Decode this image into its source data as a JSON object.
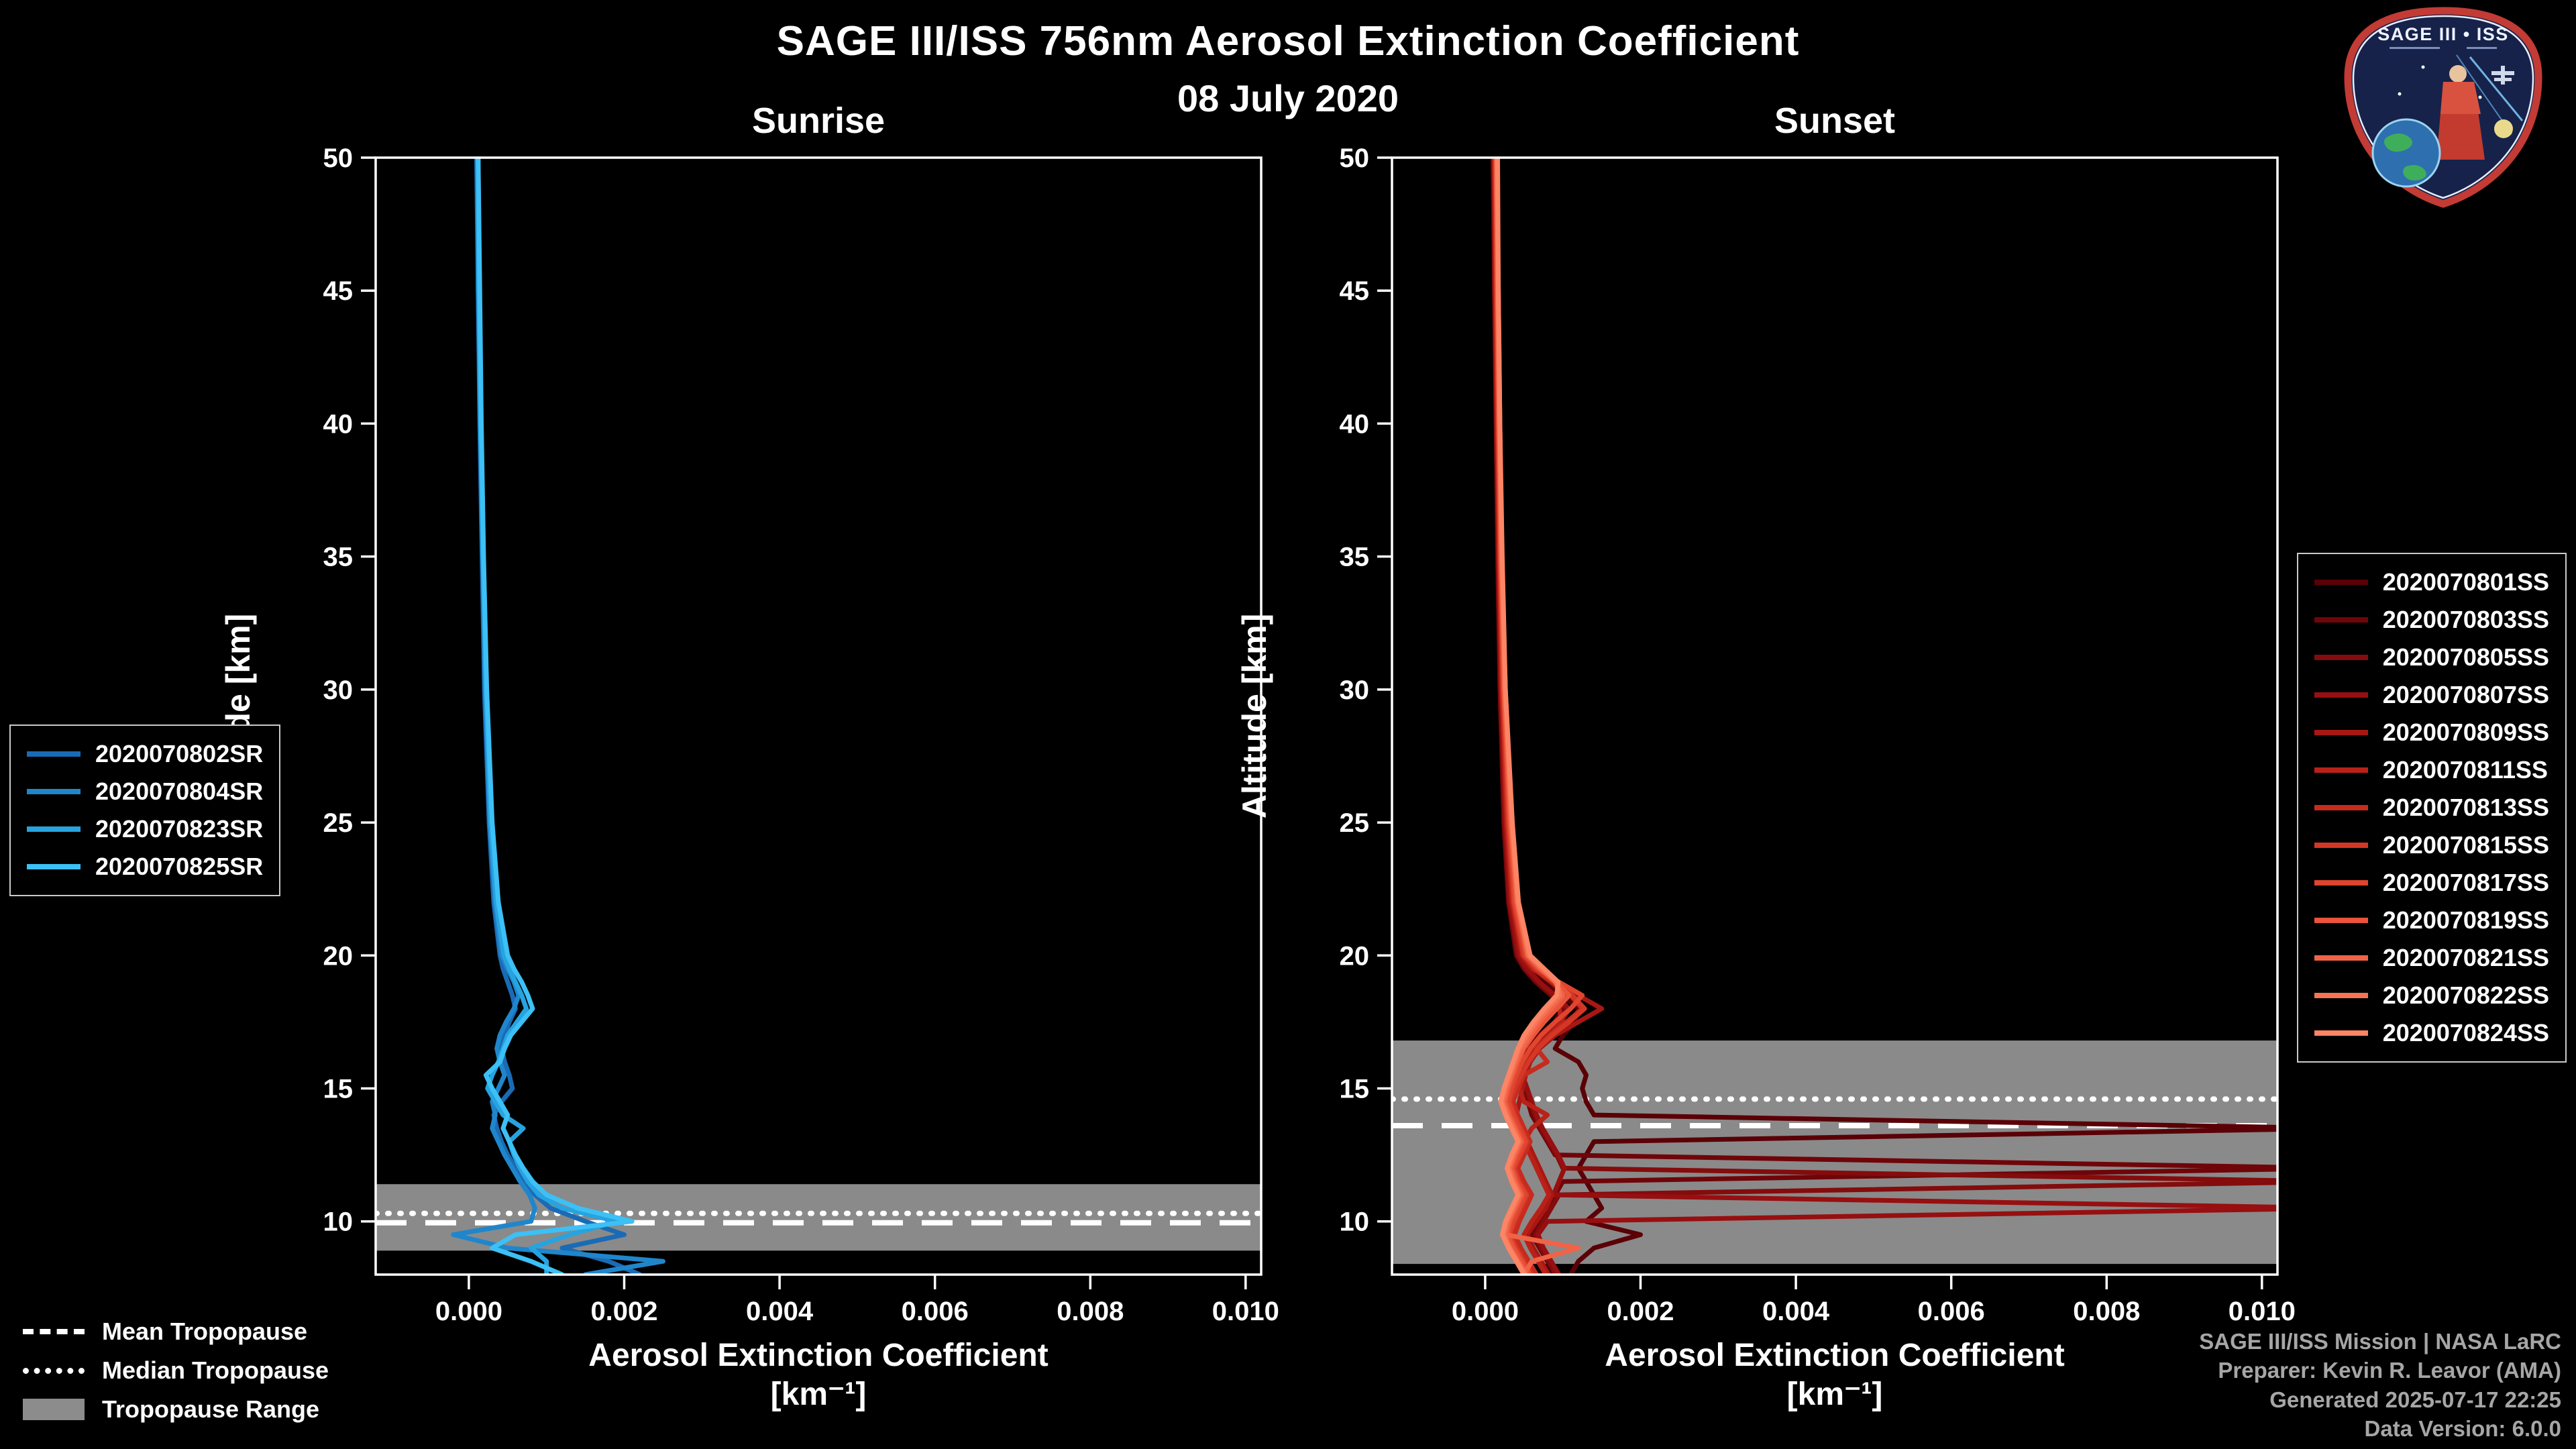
{
  "title": "SAGE III/ISS 756nm Aerosol Extinction Coefficient",
  "date": "08 July 2020",
  "logo": {
    "title": "SAGE III • ISS"
  },
  "tropopause_legend": {
    "mean": "Mean Tropopause",
    "median": "Median Tropopause",
    "range": "Tropopause Range"
  },
  "credits": {
    "line1": "SAGE III/ISS Mission | NASA LaRC",
    "line2": "Preparer: Kevin R. Leavor (AMA)",
    "line3": "Generated 2025-07-17 22:25",
    "line4": "Data Version: 6.0.0"
  },
  "chart_data": [
    {
      "type": "line",
      "title": "Sunrise",
      "xlabel": "Aerosol Extinction Coefficient",
      "xlabel_units": "[km⁻¹]",
      "ylabel": "Altitude [km]",
      "xlim": [
        -0.0012,
        0.0102
      ],
      "ylim": [
        8,
        50
      ],
      "xticks": [
        0.0,
        0.002,
        0.004,
        0.006,
        0.008,
        0.01
      ],
      "xtick_labels": [
        "0.000",
        "0.002",
        "0.004",
        "0.006",
        "0.008",
        "0.010"
      ],
      "yticks": [
        10,
        15,
        20,
        25,
        30,
        35,
        40,
        45,
        50
      ],
      "grid": false,
      "band_color": "#8a8a8a",
      "tropopause": {
        "mean": 9.95,
        "median": 10.3,
        "range": [
          8.9,
          11.4
        ]
      },
      "altitudes": [
        50,
        45,
        40,
        35,
        30,
        25,
        22,
        20,
        19.5,
        19,
        18.5,
        18,
        17.5,
        17,
        16.5,
        16,
        15.5,
        15,
        14.5,
        14,
        13.5,
        13,
        12.5,
        12,
        11.5,
        11,
        10.5,
        10,
        9.5,
        9,
        8.5,
        8
      ],
      "series": [
        {
          "name": "2020070802SR",
          "color": "#1a6bb5",
          "values": [
            0.0001,
            0.00012,
            0.00014,
            0.00017,
            0.0002,
            0.00026,
            0.00032,
            0.0004,
            0.00044,
            0.0005,
            0.00056,
            0.0006,
            0.00052,
            0.00046,
            0.00042,
            0.00046,
            0.00052,
            0.00056,
            0.00042,
            0.00032,
            0.00036,
            0.00042,
            0.0005,
            0.0006,
            0.00072,
            0.00085,
            0.00105,
            0.0015,
            0.002,
            0.0012,
            0.0018,
            0.0022
          ]
        },
        {
          "name": "2020070804SR",
          "color": "#1f86cc",
          "values": [
            0.00011,
            0.00012,
            0.00015,
            0.00018,
            0.00021,
            0.00027,
            0.00034,
            0.00042,
            0.0005,
            0.00058,
            0.00064,
            0.00058,
            0.00048,
            0.0004,
            0.00036,
            0.0004,
            0.00046,
            0.00038,
            0.0003,
            0.00034,
            0.0003,
            0.00038,
            0.00046,
            0.00056,
            0.00066,
            0.00078,
            0.00085,
            0.0008,
            -0.0002,
            0.0005,
            0.0025,
            0.0015
          ]
        },
        {
          "name": "2020070823SR",
          "color": "#27a3e0",
          "values": [
            0.00012,
            0.00013,
            0.00015,
            0.00018,
            0.00022,
            0.00028,
            0.00035,
            0.00045,
            0.00052,
            0.0006,
            0.00068,
            0.00074,
            0.00062,
            0.0005,
            0.00044,
            0.00038,
            0.0003,
            0.00024,
            0.00034,
            0.00044,
            0.0007,
            0.00052,
            0.00058,
            0.00066,
            0.00076,
            0.0009,
            0.0012,
            0.0019,
            0.0013,
            0.0008,
            0.001,
            0.001
          ]
        },
        {
          "name": "2020070825SR",
          "color": "#3cc0f5",
          "values": [
            0.00012,
            0.00014,
            0.00016,
            0.00019,
            0.00023,
            0.0003,
            0.00038,
            0.0005,
            0.00058,
            0.00068,
            0.00076,
            0.00082,
            0.00068,
            0.00054,
            0.00046,
            0.0004,
            0.00022,
            0.0003,
            0.0004,
            0.0005,
            0.00044,
            0.00052,
            0.0006,
            0.0007,
            0.00082,
            0.001,
            0.0014,
            0.0021,
            0.0006,
            0.0003,
            0.0008,
            0.0012
          ]
        }
      ]
    },
    {
      "type": "line",
      "title": "Sunset",
      "xlabel": "Aerosol Extinction Coefficient",
      "xlabel_units": "[km⁻¹]",
      "ylabel": "Altitude [km]",
      "xlim": [
        -0.0012,
        0.0102
      ],
      "ylim": [
        8,
        50
      ],
      "xticks": [
        0.0,
        0.002,
        0.004,
        0.006,
        0.008,
        0.01
      ],
      "xtick_labels": [
        "0.000",
        "0.002",
        "0.004",
        "0.006",
        "0.008",
        "0.010"
      ],
      "yticks": [
        10,
        15,
        20,
        25,
        30,
        35,
        40,
        45,
        50
      ],
      "grid": false,
      "band_color": "#8a8a8a",
      "tropopause": {
        "mean": 13.6,
        "median": 14.6,
        "range": [
          8.4,
          16.8
        ]
      },
      "altitudes": [
        50,
        45,
        40,
        35,
        30,
        25,
        22,
        20,
        19.5,
        19,
        18.5,
        18,
        17.5,
        17,
        16.5,
        16,
        15.5,
        15,
        14.5,
        14,
        13.5,
        13,
        12.5,
        12,
        11.5,
        11,
        10.5,
        10,
        9.5,
        9,
        8.5,
        8
      ],
      "series": [
        {
          "name": "2020070801SS",
          "color": "#5a0006",
          "values": [
            0.0001,
            0.00012,
            0.00014,
            0.00016,
            0.00019,
            0.00024,
            0.0003,
            0.00045,
            0.0006,
            0.0008,
            0.001,
            0.0012,
            0.00115,
            0.001,
            0.0009,
            0.0012,
            0.0013,
            0.00125,
            0.0013,
            0.0014,
            0.011,
            0.0014,
            0.0013,
            0.0012,
            0.0013,
            0.0014,
            0.0015,
            0.0013,
            0.002,
            0.0014,
            0.0012,
            0.0011
          ]
        },
        {
          "name": "2020070803SS",
          "color": "#6f0509",
          "values": [
            0.0001,
            0.00012,
            0.00014,
            0.00016,
            0.00019,
            0.00024,
            0.0003,
            0.0004,
            0.0005,
            0.00065,
            0.00085,
            0.001,
            0.0009,
            0.0007,
            0.00055,
            0.0005,
            0.00045,
            0.0005,
            0.00055,
            0.0006,
            0.0007,
            0.0008,
            0.0009,
            0.011,
            0.001,
            0.0009,
            0.0008,
            0.0007,
            0.0006,
            0.0007,
            0.0008,
            0.0009
          ]
        },
        {
          "name": "2020070805SS",
          "color": "#840c0c",
          "values": [
            0.00011,
            0.00012,
            0.00014,
            0.00017,
            0.0002,
            0.00025,
            0.00031,
            0.00042,
            0.00052,
            0.00068,
            0.00088,
            0.00105,
            0.00095,
            0.00075,
            0.00058,
            0.0005,
            0.00046,
            0.00052,
            0.00058,
            0.00064,
            0.00072,
            0.00082,
            0.00092,
            0.001,
            0.011,
            0.00095,
            0.00085,
            0.00075,
            0.00065,
            0.00072,
            0.00082,
            0.00092
          ]
        },
        {
          "name": "2020070807SS",
          "color": "#970f10",
          "values": [
            0.00011,
            0.00013,
            0.00015,
            0.00017,
            0.0002,
            0.00026,
            0.00032,
            0.00043,
            0.00054,
            0.0007,
            0.0009,
            0.00108,
            0.00098,
            0.00078,
            0.0006,
            0.00052,
            0.00048,
            0.00054,
            0.0006,
            0.00066,
            0.00074,
            0.00084,
            0.00094,
            0.00102,
            0.00095,
            0.00088,
            0.011,
            0.0008,
            0.00068,
            0.00075,
            0.00085,
            0.00095
          ]
        },
        {
          "name": "2020070809SS",
          "color": "#a81713",
          "values": [
            0.00012,
            0.00013,
            0.00015,
            0.00018,
            0.00021,
            0.00027,
            0.00034,
            0.00046,
            0.0006,
            0.0009,
            0.0012,
            0.0015,
            0.0012,
            0.0009,
            0.0007,
            0.00058,
            0.00052,
            0.00048,
            0.00044,
            0.0004,
            0.00046,
            0.00054,
            0.00062,
            0.0007,
            0.00078,
            0.00086,
            0.00078,
            0.00066,
            0.00054,
            0.00062,
            0.00072,
            0.00082
          ]
        },
        {
          "name": "2020070811SS",
          "color": "#b92118",
          "values": [
            0.00012,
            0.00014,
            0.00016,
            0.00018,
            0.00022,
            0.00028,
            0.00035,
            0.00048,
            0.00062,
            0.00085,
            0.00105,
            0.00095,
            0.001,
            0.00082,
            0.00064,
            0.00054,
            0.00048,
            0.00044,
            0.0005,
            0.0008,
            0.0006,
            0.0005,
            0.00058,
            0.00066,
            0.00074,
            0.00082,
            0.00072,
            0.0006,
            0.0005,
            0.00058,
            0.00068,
            0.00078
          ]
        },
        {
          "name": "2020070813SS",
          "color": "#c72b1e",
          "values": [
            0.00013,
            0.00014,
            0.00016,
            0.00019,
            0.00022,
            0.00029,
            0.00036,
            0.00049,
            0.00064,
            0.00088,
            0.0011,
            0.00125,
            0.00105,
            0.00084,
            0.00066,
            0.0008,
            0.0005,
            0.00042,
            0.00036,
            0.00042,
            0.0005,
            0.00058,
            0.0005,
            0.00042,
            0.0005,
            0.0006,
            0.00052,
            0.00044,
            0.00038,
            0.00046,
            0.00056,
            0.00066
          ]
        },
        {
          "name": "2020070815SS",
          "color": "#d43726",
          "values": [
            0.00013,
            0.00015,
            0.00017,
            0.00019,
            0.00023,
            0.0003,
            0.00037,
            0.0005,
            0.00066,
            0.0009,
            0.00112,
            0.00128,
            0.00108,
            0.00086,
            0.00068,
            0.00056,
            0.00046,
            0.00038,
            0.00032,
            0.00038,
            0.00046,
            0.00054,
            0.00046,
            0.00038,
            0.00044,
            0.00054,
            0.00046,
            0.00038,
            0.00032,
            0.0004,
            0.0005,
            0.0006
          ]
        },
        {
          "name": "2020070817SS",
          "color": "#df452f",
          "values": [
            0.00014,
            0.00015,
            0.00017,
            0.0002,
            0.00024,
            0.00031,
            0.00038,
            0.00052,
            0.00068,
            0.00095,
            0.00125,
            0.0011,
            0.0009,
            0.00072,
            0.00058,
            0.00048,
            0.0004,
            0.00034,
            0.0003,
            0.00036,
            0.00044,
            0.00052,
            0.00044,
            0.00036,
            0.00042,
            0.00052,
            0.00044,
            0.00036,
            0.0003,
            0.00038,
            0.00048,
            0.00058
          ]
        },
        {
          "name": "2020070819SS",
          "color": "#e9543a",
          "values": [
            0.00014,
            0.00016,
            0.00018,
            0.0002,
            0.00024,
            0.00032,
            0.0004,
            0.00054,
            0.0007,
            0.00092,
            0.00108,
            0.00092,
            0.00076,
            0.00062,
            0.0005,
            0.00042,
            0.00036,
            0.0003,
            0.00026,
            0.00032,
            0.0004,
            0.00048,
            0.0004,
            0.00034,
            0.0004,
            0.00048,
            0.0004,
            0.00032,
            0.00028,
            0.00036,
            0.00046,
            0.00056
          ]
        },
        {
          "name": "2020070821SS",
          "color": "#f16347",
          "values": [
            0.00015,
            0.00016,
            0.00018,
            0.00021,
            0.00025,
            0.00033,
            0.00041,
            0.00055,
            0.00072,
            0.0009,
            0.001,
            0.00085,
            0.0007,
            0.00058,
            0.00048,
            0.0004,
            0.00034,
            0.00028,
            0.00024,
            0.0003,
            0.00038,
            0.00046,
            0.00038,
            0.00032,
            0.00038,
            0.00046,
            0.00038,
            0.0003,
            0.00026,
            0.0012,
            0.0006,
            0.0005
          ]
        },
        {
          "name": "2020070822SS",
          "color": "#f77355",
          "values": [
            0.00015,
            0.00017,
            0.00019,
            0.00021,
            0.00026,
            0.00034,
            0.00042,
            0.00056,
            0.00074,
            0.00092,
            0.00096,
            0.0008,
            0.00066,
            0.00054,
            0.00044,
            0.00038,
            0.00032,
            0.00026,
            0.00022,
            0.00028,
            0.00036,
            0.00044,
            0.00036,
            0.0003,
            0.00036,
            0.00044,
            0.00036,
            0.00028,
            0.00024,
            0.00032,
            0.00042,
            0.00052
          ]
        },
        {
          "name": "2020070824SS",
          "color": "#fc8565",
          "values": [
            0.00016,
            0.00017,
            0.00019,
            0.00022,
            0.00026,
            0.00035,
            0.00043,
            0.00058,
            0.00076,
            0.00094,
            0.00092,
            0.00076,
            0.00062,
            0.0005,
            0.00042,
            0.00036,
            0.0003,
            0.00024,
            0.0002,
            0.00026,
            0.00034,
            0.00042,
            0.00034,
            0.00028,
            0.00034,
            0.00042,
            0.00034,
            0.00026,
            0.00022,
            0.0003,
            0.0004,
            0.0005
          ]
        }
      ]
    }
  ]
}
